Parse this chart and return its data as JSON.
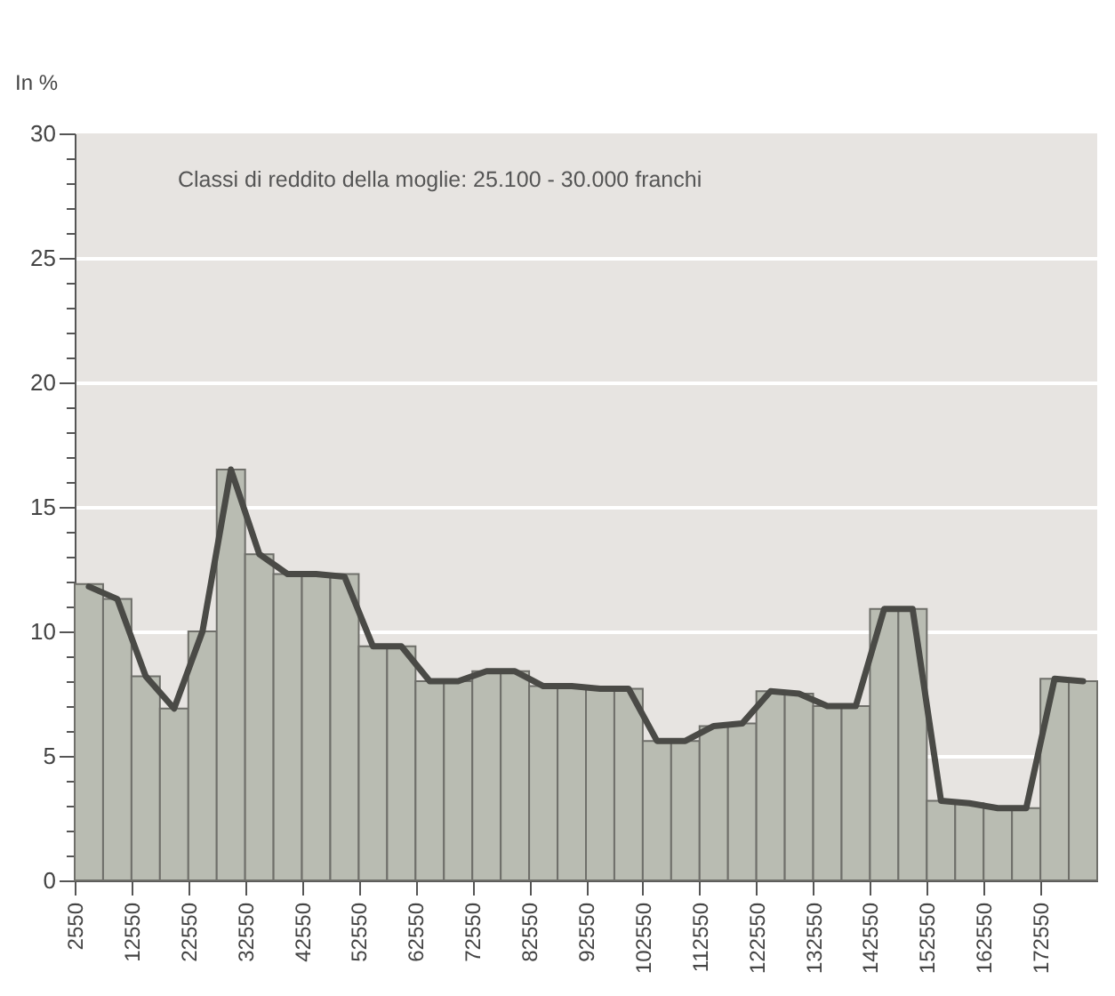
{
  "chart_data": {
    "type": "histogram",
    "ylabel": "In %",
    "annotations": [
      "Classi di reddito della moglie: 25.100 - 30.000 franchi"
    ],
    "bins": [
      2550,
      7550,
      12550,
      17550,
      22550,
      27550,
      32550,
      37550,
      42550,
      47550,
      52550,
      57550,
      62550,
      67550,
      72550,
      77550,
      82550,
      87550,
      92550,
      97550,
      102550,
      107550,
      112550,
      117550,
      122550,
      127550,
      132550,
      137550,
      142550,
      147550,
      152550,
      157550,
      162550,
      167550,
      172550,
      177550,
      182550
    ],
    "series": [
      {
        "color": "#b9bcb2",
        "values": [
          11.9,
          11.3,
          8.2,
          6.9,
          10.0,
          16.5,
          13.1,
          12.3,
          12.3,
          12.3,
          9.4,
          9.4,
          8.0,
          8.0,
          8.4,
          8.4,
          7.8,
          7.8,
          7.7,
          7.7,
          5.6,
          5.6,
          6.2,
          6.3,
          7.6,
          7.5,
          7.0,
          7.0,
          10.9,
          10.9,
          3.2,
          3.1,
          2.9,
          2.9,
          8.1,
          8.0
        ]
      },
      {
        "type": "line",
        "color": "#4a4a46",
        "x": [
          5050,
          10050,
          15050,
          20050,
          25050,
          30050,
          35050,
          40050,
          45050,
          50050,
          55050,
          60050,
          65050,
          70050,
          75050,
          80050,
          85050,
          90050,
          95050,
          100050,
          105050,
          110050,
          115050,
          120050,
          125050,
          130050,
          135050,
          140050,
          145050,
          150050,
          155050,
          160050,
          165050,
          170050,
          175050,
          180050
        ],
        "values": [
          11.8,
          11.3,
          8.2,
          6.9,
          10.0,
          16.5,
          13.1,
          12.3,
          12.3,
          12.2,
          9.4,
          9.4,
          8.0,
          8.0,
          8.4,
          8.4,
          7.8,
          7.8,
          7.7,
          7.7,
          5.6,
          5.6,
          6.2,
          6.3,
          7.6,
          7.5,
          7.0,
          7.0,
          10.9,
          10.9,
          3.2,
          3.1,
          2.9,
          2.9,
          8.1,
          8.0
        ]
      }
    ],
    "xlim": [
      2550,
      182550
    ],
    "xticks": [
      2550,
      12550,
      22550,
      32550,
      42550,
      52550,
      62550,
      72550,
      82550,
      92550,
      102550,
      112550,
      122550,
      132550,
      142550,
      152550,
      162550,
      172550
    ],
    "ylim": [
      0,
      30
    ],
    "yticks": [
      0,
      {
        "value": 1,
        "label": null
      },
      {
        "value": 2,
        "label": null
      },
      {
        "value": 3,
        "label": null
      },
      {
        "value": 4,
        "label": null
      },
      5,
      {
        "value": 6,
        "label": null
      },
      {
        "value": 7,
        "label": null
      },
      {
        "value": 8,
        "label": null
      },
      {
        "value": 9,
        "label": null
      },
      10,
      {
        "value": 11,
        "label": null
      },
      {
        "value": 12,
        "label": null
      },
      {
        "value": 13,
        "label": null
      },
      {
        "value": 14,
        "label": null
      },
      15,
      {
        "value": 16,
        "label": null
      },
      {
        "value": 17,
        "label": null
      },
      {
        "value": 18,
        "label": null
      },
      {
        "value": 19,
        "label": null
      },
      20,
      {
        "value": 21,
        "label": null
      },
      {
        "value": 22,
        "label": null
      },
      {
        "value": 23,
        "label": null
      },
      {
        "value": 24,
        "label": null
      },
      25,
      {
        "value": 26,
        "label": null
      },
      {
        "value": 27,
        "label": null
      },
      {
        "value": 28,
        "label": null
      },
      {
        "value": 29,
        "label": null
      },
      30
    ],
    "grid": "y"
  }
}
